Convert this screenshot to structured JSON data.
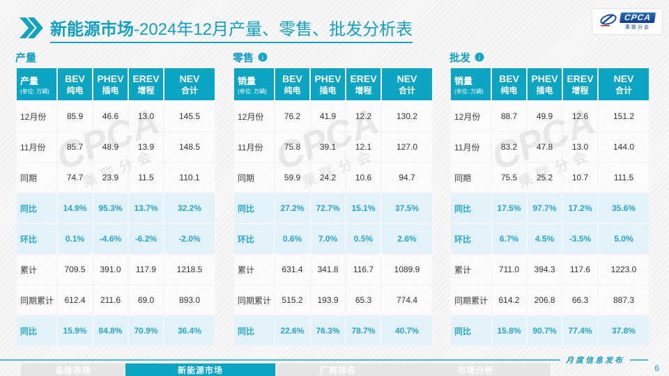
{
  "slide": {
    "title_bold": "新能源市场",
    "title_rest": "-2024年12月产量、零售、批发分析表",
    "footer_note": "月度信息发布",
    "page_number": "6"
  },
  "logo": {
    "text": "CPCA",
    "subtext": "乘联分会"
  },
  "watermark": {
    "line1": "CPCA",
    "line2": "乘联分会"
  },
  "colors": {
    "teal": "#0ba4c2",
    "title_teal": "#11a0c4",
    "percent_text": "#27a7c9",
    "highlight_row_bg": "#e3f1f8",
    "logo_blue": "#0d3f8e"
  },
  "footer_tabs": [
    {
      "label": "总体市场",
      "active": false
    },
    {
      "label": "新能源市场",
      "active": true
    },
    {
      "label": "厂商排名",
      "active": false
    },
    {
      "label": "市场分析",
      "active": false
    }
  ],
  "tables": [
    {
      "section_title": "产量",
      "arrow_icon": false,
      "header_label": "产量",
      "header_unit": "(单位: 万辆)",
      "columns": [
        {
          "en": "BEV",
          "cn": "纯电"
        },
        {
          "en": "PHEV",
          "cn": "插电"
        },
        {
          "en": "EREV",
          "cn": "增程"
        },
        {
          "en": "NEV",
          "cn": "合计"
        }
      ],
      "rows": [
        {
          "label": "12月份",
          "values": [
            "85.9",
            "46.6",
            "13.0",
            "145.5"
          ],
          "highlight": false
        },
        {
          "label": "11月份",
          "values": [
            "85.7",
            "48.9",
            "13.9",
            "148.5"
          ],
          "highlight": false
        },
        {
          "label": "同期",
          "values": [
            "74.7",
            "23.9",
            "11.5",
            "110.1"
          ],
          "highlight": false
        },
        {
          "label": "同比",
          "values": [
            "14.9%",
            "95.3%",
            "13.7%",
            "32.2%"
          ],
          "highlight": true
        },
        {
          "label": "环比",
          "values": [
            "0.1%",
            "-4.6%",
            "-6.2%",
            "-2.0%"
          ],
          "highlight": true
        },
        {
          "label": "累计",
          "values": [
            "709.5",
            "391.0",
            "117.9",
            "1218.5"
          ],
          "highlight": false
        },
        {
          "label": "同期累计",
          "values": [
            "612.4",
            "211.6",
            "69.0",
            "893.0"
          ],
          "highlight": false
        },
        {
          "label": "同比",
          "values": [
            "15.9%",
            "84.8%",
            "70.9%",
            "36.4%"
          ],
          "highlight": true
        }
      ]
    },
    {
      "section_title": "零售",
      "arrow_icon": true,
      "header_label": "销量",
      "header_unit": "(单位: 万辆)",
      "columns": [
        {
          "en": "BEV",
          "cn": "纯电"
        },
        {
          "en": "PHEV",
          "cn": "插电"
        },
        {
          "en": "EREV",
          "cn": "增程"
        },
        {
          "en": "NEV",
          "cn": "合计"
        }
      ],
      "rows": [
        {
          "label": "12月份",
          "values": [
            "76.2",
            "41.9",
            "12.2",
            "130.2"
          ],
          "highlight": false
        },
        {
          "label": "11月份",
          "values": [
            "75.8",
            "39.1",
            "12.1",
            "127.0"
          ],
          "highlight": false
        },
        {
          "label": "同期",
          "values": [
            "59.9",
            "24.2",
            "10.6",
            "94.7"
          ],
          "highlight": false
        },
        {
          "label": "同比",
          "values": [
            "27.2%",
            "72.7%",
            "15.1%",
            "37.5%"
          ],
          "highlight": true
        },
        {
          "label": "环比",
          "values": [
            "0.6%",
            "7.0%",
            "0.5%",
            "2.6%"
          ],
          "highlight": true
        },
        {
          "label": "累计",
          "values": [
            "631.4",
            "341.8",
            "116.7",
            "1089.9"
          ],
          "highlight": false
        },
        {
          "label": "同期累计",
          "values": [
            "515.2",
            "193.9",
            "65.3",
            "774.4"
          ],
          "highlight": false
        },
        {
          "label": "同比",
          "values": [
            "22.6%",
            "76.3%",
            "78.7%",
            "40.7%"
          ],
          "highlight": true
        }
      ]
    },
    {
      "section_title": "批发",
      "arrow_icon": true,
      "header_label": "销量",
      "header_unit": "(单位: 万辆)",
      "columns": [
        {
          "en": "BEV",
          "cn": "纯电"
        },
        {
          "en": "PHEV",
          "cn": "插电"
        },
        {
          "en": "EREV",
          "cn": "增程"
        },
        {
          "en": "NEV",
          "cn": "合计"
        }
      ],
      "rows": [
        {
          "label": "12月份",
          "values": [
            "88.7",
            "49.9",
            "12.6",
            "151.2"
          ],
          "highlight": false
        },
        {
          "label": "11月份",
          "values": [
            "83.2",
            "47.8",
            "13.0",
            "144.0"
          ],
          "highlight": false
        },
        {
          "label": "同期",
          "values": [
            "75.5",
            "25.2",
            "10.7",
            "111.5"
          ],
          "highlight": false
        },
        {
          "label": "同比",
          "values": [
            "17.5%",
            "97.7%",
            "17.2%",
            "35.6%"
          ],
          "highlight": true
        },
        {
          "label": "环比",
          "values": [
            "6.7%",
            "4.5%",
            "-3.5%",
            "5.0%"
          ],
          "highlight": true
        },
        {
          "label": "累计",
          "values": [
            "711.0",
            "394.3",
            "117.6",
            "1223.0"
          ],
          "highlight": false
        },
        {
          "label": "同期累计",
          "values": [
            "614.2",
            "206.8",
            "66.3",
            "887.3"
          ],
          "highlight": false
        },
        {
          "label": "同比",
          "values": [
            "15.8%",
            "90.7%",
            "77.4%",
            "37.8%"
          ],
          "highlight": true
        }
      ]
    }
  ]
}
